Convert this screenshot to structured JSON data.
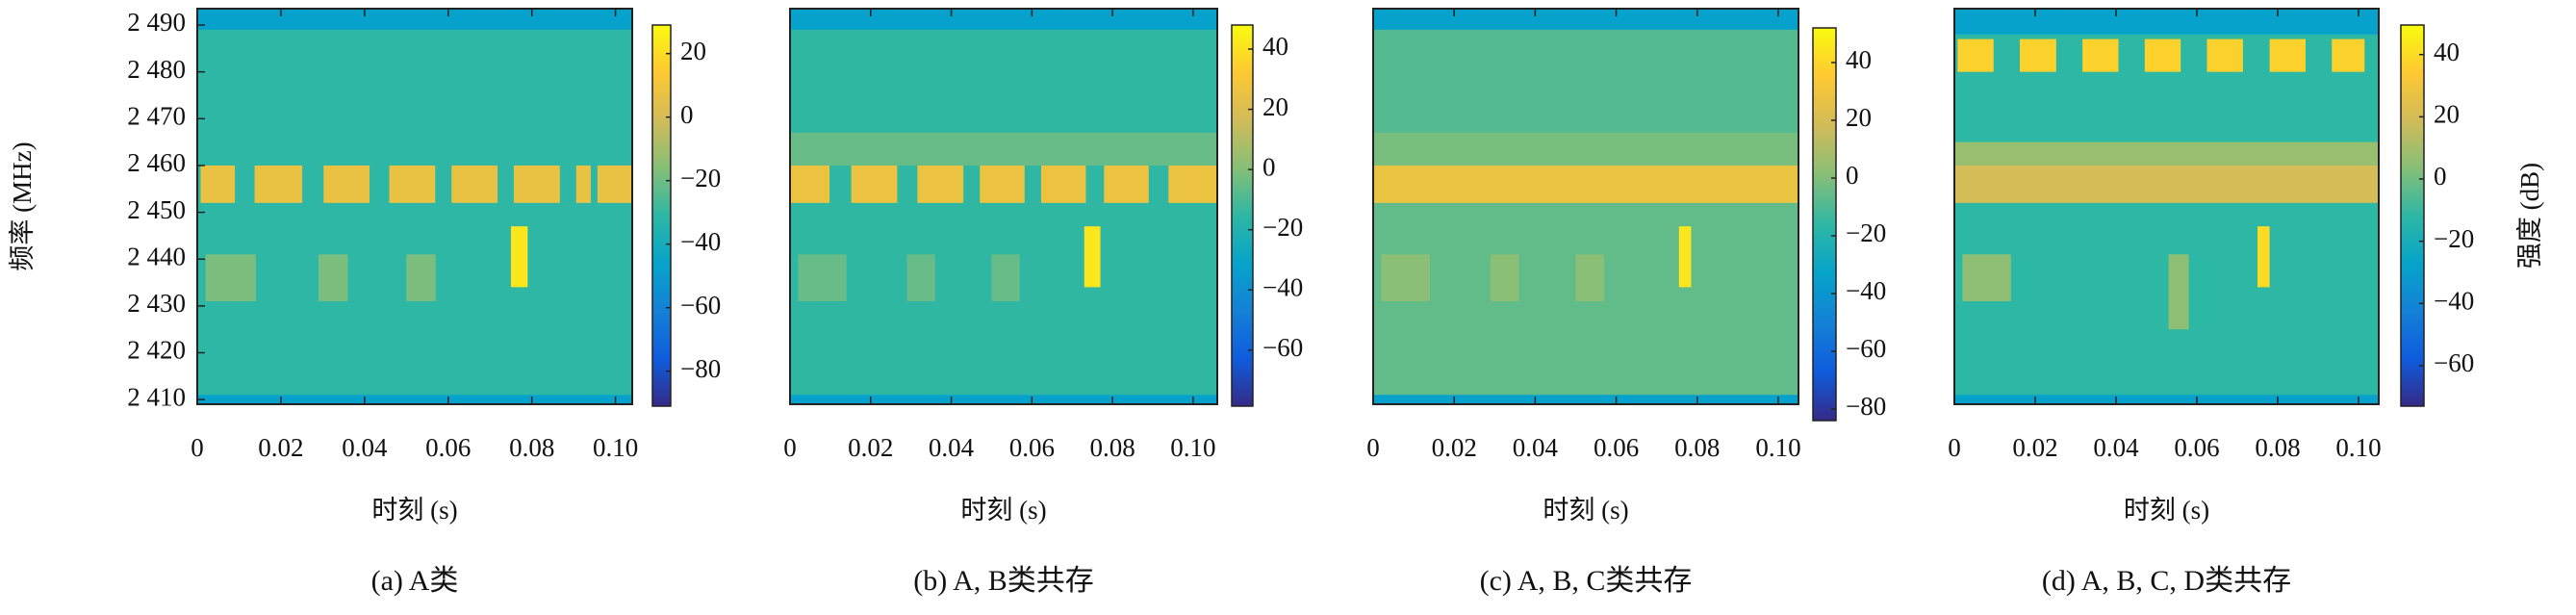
{
  "chart_data": [
    {
      "type": "heatmap",
      "caption": "(a) A类",
      "xlabel": "时刻 (s)",
      "ylabel": "频率 (MHz)",
      "xlim": [
        0,
        0.104
      ],
      "xticks": [
        0,
        0.02,
        0.04,
        0.06,
        0.08,
        {
          "value": 0.1,
          "label": "0.10"
        }
      ],
      "ylim": [
        2409,
        2493.5
      ],
      "yticks": [
        {
          "value": 2410,
          "label": "2 410"
        },
        {
          "value": 2420,
          "label": "2 420"
        },
        {
          "value": 2430,
          "label": "2 430"
        },
        {
          "value": 2440,
          "label": "2 440"
        },
        {
          "value": 2450,
          "label": "2 450"
        },
        {
          "value": 2460,
          "label": "2 460"
        },
        {
          "value": 2470,
          "label": "2 470"
        },
        {
          "value": 2480,
          "label": "2 480"
        },
        {
          "value": 2490,
          "label": "2 490"
        }
      ],
      "clim": [
        -91,
        29
      ],
      "cticks": [
        {
          "value": -80,
          "label": "−80"
        },
        {
          "value": -60,
          "label": "−60"
        },
        {
          "value": -40,
          "label": "−40"
        },
        {
          "value": -20,
          "label": "−20"
        },
        0,
        20
      ],
      "background": -31,
      "cells": [
        {
          "x": [
            0,
            0.104
          ],
          "y": [
            2489,
            2493.5
          ],
          "value": -47
        },
        {
          "x": [
            0,
            0.104
          ],
          "y": [
            2409,
            2411
          ],
          "value": -47
        },
        {
          "x": [
            0.0008,
            0.009
          ],
          "y": [
            2452,
            2460
          ],
          "value": 7
        },
        {
          "x": [
            0.0137,
            0.0251
          ],
          "y": [
            2452,
            2460
          ],
          "value": 7
        },
        {
          "x": [
            0.0302,
            0.0412
          ],
          "y": [
            2452,
            2460
          ],
          "value": 7
        },
        {
          "x": [
            0.0459,
            0.0569
          ],
          "y": [
            2452,
            2460
          ],
          "value": 7
        },
        {
          "x": [
            0.0608,
            0.0718
          ],
          "y": [
            2452,
            2460
          ],
          "value": 7
        },
        {
          "x": [
            0.0757,
            0.0867
          ],
          "y": [
            2452,
            2460
          ],
          "value": 7
        },
        {
          "x": [
            0.0906,
            0.0941
          ],
          "y": [
            2452,
            2460
          ],
          "value": 7
        },
        {
          "x": [
            0.0957,
            0.104
          ],
          "y": [
            2452,
            2460
          ],
          "value": 7
        },
        {
          "x": [
            0.002,
            0.014
          ],
          "y": [
            2431,
            2441
          ],
          "value": -18
        },
        {
          "x": [
            0.029,
            0.036
          ],
          "y": [
            2431,
            2441
          ],
          "value": -18
        },
        {
          "x": [
            0.05,
            0.057
          ],
          "y": [
            2431,
            2441
          ],
          "value": -18
        },
        {
          "x": [
            0.075,
            0.079
          ],
          "y": [
            2434,
            2447
          ],
          "value": 23
        }
      ]
    },
    {
      "type": "heatmap",
      "caption": "(b) A, B类共存",
      "xlabel": "时刻 (s)",
      "xlim": [
        0,
        0.106
      ],
      "xticks": [
        0,
        0.02,
        0.04,
        0.06,
        0.08,
        {
          "value": 0.1,
          "label": "0.10"
        }
      ],
      "ylim": [
        2409,
        2493.5
      ],
      "clim": [
        -78.6,
        48
      ],
      "cticks": [
        {
          "value": -60,
          "label": "−60"
        },
        {
          "value": -40,
          "label": "−40"
        },
        {
          "value": -20,
          "label": "−20"
        },
        0,
        20,
        40
      ],
      "background": -15,
      "cells": [
        {
          "x": [
            0,
            0.106
          ],
          "y": [
            2489,
            2493.5
          ],
          "value": -32
        },
        {
          "x": [
            0,
            0.106
          ],
          "y": [
            2409,
            2411
          ],
          "value": -32
        },
        {
          "x": [
            0,
            0.106
          ],
          "y": [
            2460,
            2467
          ],
          "value": -5
        },
        {
          "x": [
            0,
            0.0098
          ],
          "y": [
            2452,
            2460
          ],
          "value": 26
        },
        {
          "x": [
            0.0152,
            0.0266
          ],
          "y": [
            2452,
            2460
          ],
          "value": 26
        },
        {
          "x": [
            0.0316,
            0.043
          ],
          "y": [
            2452,
            2460
          ],
          "value": 26
        },
        {
          "x": [
            0.0471,
            0.0582
          ],
          "y": [
            2452,
            2460
          ],
          "value": 26
        },
        {
          "x": [
            0.0623,
            0.0734
          ],
          "y": [
            2452,
            2460
          ],
          "value": 26
        },
        {
          "x": [
            0.0779,
            0.089
          ],
          "y": [
            2452,
            2460
          ],
          "value": 26
        },
        {
          "x": [
            0.0939,
            0.106
          ],
          "y": [
            2452,
            2460
          ],
          "value": 26
        },
        {
          "x": [
            0.002,
            0.014
          ],
          "y": [
            2431,
            2441
          ],
          "value": -5
        },
        {
          "x": [
            0.029,
            0.036
          ],
          "y": [
            2431,
            2441
          ],
          "value": -5
        },
        {
          "x": [
            0.05,
            0.057
          ],
          "y": [
            2431,
            2441
          ],
          "value": -5
        },
        {
          "x": [
            0.073,
            0.077
          ],
          "y": [
            2434,
            2447
          ],
          "value": 42
        }
      ]
    },
    {
      "type": "heatmap",
      "caption": "(c) A, B, C类共存",
      "xlabel": "时刻 (s)",
      "xlim": [
        0,
        0.105
      ],
      "xticks": [
        0,
        0.02,
        0.04,
        0.06,
        0.08,
        {
          "value": 0.1,
          "label": "0.10"
        }
      ],
      "ylim": [
        2409,
        2493.5
      ],
      "clim": [
        -84,
        52
      ],
      "cticks": [
        {
          "value": -80,
          "label": "−80"
        },
        {
          "value": -60,
          "label": "−60"
        },
        {
          "value": -40,
          "label": "−40"
        },
        {
          "value": -20,
          "label": "−20"
        },
        0,
        20,
        40
      ],
      "background": -9,
      "cells": [
        {
          "x": [
            0,
            0.105
          ],
          "y": [
            2411,
            2452
          ],
          "value": -6
        },
        {
          "x": [
            0,
            0.105
          ],
          "y": [
            2489,
            2493.5
          ],
          "value": -34
        },
        {
          "x": [
            0,
            0.105
          ],
          "y": [
            2409,
            2411
          ],
          "value": -34
        },
        {
          "x": [
            0,
            0.105
          ],
          "y": [
            2460,
            2467
          ],
          "value": -2
        },
        {
          "x": [
            0,
            0.105
          ],
          "y": [
            2452,
            2460
          ],
          "value": 28
        },
        {
          "x": [
            0.002,
            0.014
          ],
          "y": [
            2431,
            2441
          ],
          "value": 2
        },
        {
          "x": [
            0.029,
            0.036
          ],
          "y": [
            2431,
            2441
          ],
          "value": 2
        },
        {
          "x": [
            0.05,
            0.057
          ],
          "y": [
            2431,
            2441
          ],
          "value": 2
        },
        {
          "x": [
            0.0755,
            0.0785
          ],
          "y": [
            2434,
            2447
          ],
          "value": 45
        }
      ]
    },
    {
      "type": "heatmap",
      "caption": "(d) A, B, C, D类共存",
      "xlabel": "时刻 (s)",
      "colorbar_label": "强度 (dB)",
      "xlim": [
        0,
        0.105
      ],
      "xticks": [
        0,
        0.02,
        0.04,
        0.06,
        0.08,
        {
          "value": 0.1,
          "label": "0.10"
        }
      ],
      "ylim": [
        2409,
        2493.5
      ],
      "clim": [
        -73,
        49.5
      ],
      "cticks": [
        {
          "value": -60,
          "label": "−60"
        },
        {
          "value": -40,
          "label": "−40"
        },
        {
          "value": -20,
          "label": "−20"
        },
        0,
        20,
        40
      ],
      "background": -12,
      "cells": [
        {
          "x": [
            0,
            0.105
          ],
          "y": [
            2488,
            2493.5
          ],
          "value": -28
        },
        {
          "x": [
            0,
            0.105
          ],
          "y": [
            2409,
            2411
          ],
          "value": -28
        },
        {
          "x": [
            0.0008,
            0.0097
          ],
          "y": [
            2480,
            2487
          ],
          "value": 37
        },
        {
          "x": [
            0.0162,
            0.0252
          ],
          "y": [
            2480,
            2487
          ],
          "value": 37
        },
        {
          "x": [
            0.0317,
            0.0406
          ],
          "y": [
            2480,
            2487
          ],
          "value": 37
        },
        {
          "x": [
            0.0471,
            0.056
          ],
          "y": [
            2480,
            2487
          ],
          "value": 37
        },
        {
          "x": [
            0.0625,
            0.0714
          ],
          "y": [
            2480,
            2487
          ],
          "value": 37
        },
        {
          "x": [
            0.078,
            0.0869
          ],
          "y": [
            2480,
            2487
          ],
          "value": 37
        },
        {
          "x": [
            0.0934,
            0.1015
          ],
          "y": [
            2480,
            2487
          ],
          "value": 37
        },
        {
          "x": [
            0,
            0.105
          ],
          "y": [
            2460,
            2465
          ],
          "value": 7
        },
        {
          "x": [
            0,
            0.105
          ],
          "y": [
            2452,
            2460
          ],
          "value": 20
        },
        {
          "x": [
            0.002,
            0.014
          ],
          "y": [
            2431,
            2441
          ],
          "value": 5
        },
        {
          "x": [
            0.053,
            0.058
          ],
          "y": [
            2425,
            2441
          ],
          "value": 5
        },
        {
          "x": [
            0.075,
            0.078
          ],
          "y": [
            2434,
            2447
          ],
          "value": 40
        }
      ]
    }
  ]
}
